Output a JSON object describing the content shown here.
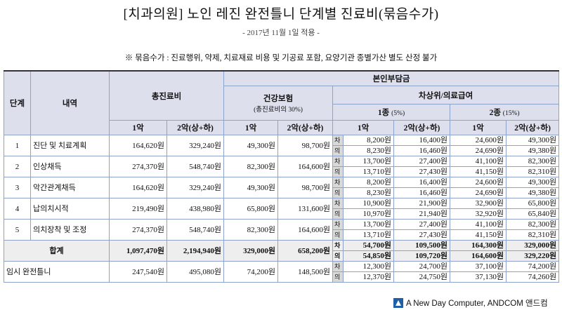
{
  "header": {
    "title": "[치과의원] 노인 레진 완전틀니 단계별 진료비(묶음수가)",
    "subtitle": "- 2017년 11월 1일 적용 -",
    "note": "※ 묶음수가 : 진료행위, 약제, 치료재료 비용 및 기공료 포함, 요양기관 종별가산 별도 산정 불가"
  },
  "table": {
    "head": {
      "stage": "단계",
      "item": "내역",
      "total": "총진료비",
      "copay": "본인부담금",
      "nhi": "건강보험",
      "nhi_note": "(총진료비의 30%)",
      "low_income": "차상위/의료급여",
      "type1": "1종",
      "type1_rate": "(5%)",
      "type2": "2종",
      "type2_rate": "(15%)",
      "subheads": [
        "1악",
        "2악(상+하)",
        "1악",
        "2악(상+하)",
        "1악",
        "2악(상+하)",
        "1악",
        "2악(상+하)"
      ]
    },
    "rows": [
      {
        "stage": "1",
        "item": "진단 및 치료계획",
        "total": [
          "164,620원",
          "329,240원"
        ],
        "nhi": [
          "49,300원",
          "98,700원"
        ],
        "low_income": [
          {
            "kind": "차",
            "values": [
              "8,200원",
              "16,400원",
              "24,600원",
              "49,300원"
            ]
          },
          {
            "kind": "의",
            "values": [
              "8,230원",
              "16,460원",
              "24,690원",
              "49,380원"
            ]
          }
        ]
      },
      {
        "stage": "2",
        "item": "인상채득",
        "total": [
          "274,370원",
          "548,740원"
        ],
        "nhi": [
          "82,300원",
          "164,600원"
        ],
        "low_income": [
          {
            "kind": "차",
            "values": [
              "13,700원",
              "27,400원",
              "41,100원",
              "82,300원"
            ]
          },
          {
            "kind": "의",
            "values": [
              "13,710원",
              "27,430원",
              "41,150원",
              "82,310원"
            ]
          }
        ]
      },
      {
        "stage": "3",
        "item": "악간관계채득",
        "total": [
          "164,620원",
          "329,240원"
        ],
        "nhi": [
          "49,300원",
          "98,700원"
        ],
        "low_income": [
          {
            "kind": "차",
            "values": [
              "8,200원",
              "16,400원",
              "24,600원",
              "49,300원"
            ]
          },
          {
            "kind": "의",
            "values": [
              "8,230원",
              "16,460원",
              "24,690원",
              "49,380원"
            ]
          }
        ]
      },
      {
        "stage": "4",
        "item": "납의치시적",
        "total": [
          "219,490원",
          "438,980원"
        ],
        "nhi": [
          "65,800원",
          "131,600원"
        ],
        "low_income": [
          {
            "kind": "차",
            "values": [
              "10,900원",
              "21,900원",
              "32,900원",
              "65,800원"
            ]
          },
          {
            "kind": "의",
            "values": [
              "10,970원",
              "21,940원",
              "32,920원",
              "65,840원"
            ]
          }
        ]
      },
      {
        "stage": "5",
        "item": "의치장착 및 조정",
        "total": [
          "274,370원",
          "548,740원"
        ],
        "nhi": [
          "82,300원",
          "164,600원"
        ],
        "low_income": [
          {
            "kind": "차",
            "values": [
              "13,700원",
              "27,400원",
              "41,100원",
              "82,300원"
            ]
          },
          {
            "kind": "의",
            "values": [
              "13,710원",
              "27,430원",
              "41,150원",
              "82,310원"
            ]
          }
        ]
      },
      {
        "item": "합계",
        "total": [
          "1,097,470원",
          "2,194,940원"
        ],
        "nhi": [
          "329,000원",
          "658,200원"
        ],
        "low_income": [
          {
            "kind": "차",
            "values": [
              "54,700원",
              "109,500원",
              "164,300원",
              "329,000원"
            ]
          },
          {
            "kind": "의",
            "values": [
              "54,850원",
              "109,720원",
              "164,600원",
              "329,220원"
            ]
          }
        ]
      },
      {
        "item": "임시 완전틀니",
        "total": [
          "247,540원",
          "495,080원"
        ],
        "nhi": [
          "74,200원",
          "148,500원"
        ],
        "low_income": [
          {
            "kind": "차",
            "values": [
              "12,300원",
              "24,700원",
              "37,100원",
              "74,200원"
            ]
          },
          {
            "kind": "의",
            "values": [
              "12,370원",
              "24,750원",
              "37,130원",
              "74,260원"
            ]
          }
        ]
      }
    ]
  },
  "footer": {
    "brand": "A New Day Computer, ANDCOM 앤드컴"
  }
}
